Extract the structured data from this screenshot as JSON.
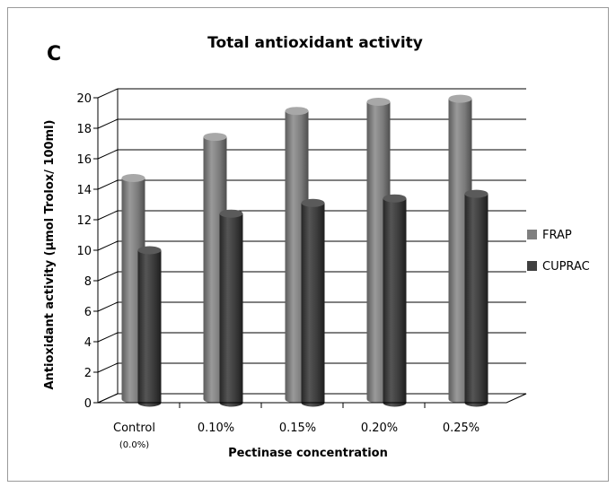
{
  "panel_label": "C",
  "chart_data": {
    "type": "bar",
    "title": "Total antioxidant activity",
    "xlabel": "Pectinase concentration",
    "ylabel": "Antioxidant activity (µmol Trolox/ 100ml)",
    "categories": [
      "Control",
      "0.10%",
      "0.15%",
      "0.20%",
      "0.25%"
    ],
    "category_sublabels": [
      "(0.0%)",
      "",
      "",
      "",
      ""
    ],
    "ylim": [
      0,
      20
    ],
    "yticks": [
      "0",
      "2",
      "4",
      "6",
      "8",
      "10",
      "12",
      "14",
      "16",
      "18",
      "20"
    ],
    "grid": true,
    "legend_position": "right",
    "style": "3d-cylinder",
    "series": [
      {
        "name": "FRAP",
        "color": "#7f7f7f",
        "values": [
          14.5,
          17.2,
          18.9,
          19.5,
          19.7
        ]
      },
      {
        "name": "CUPRAC",
        "color": "#404040",
        "values": [
          10.0,
          12.4,
          13.1,
          13.4,
          13.7
        ]
      }
    ]
  }
}
